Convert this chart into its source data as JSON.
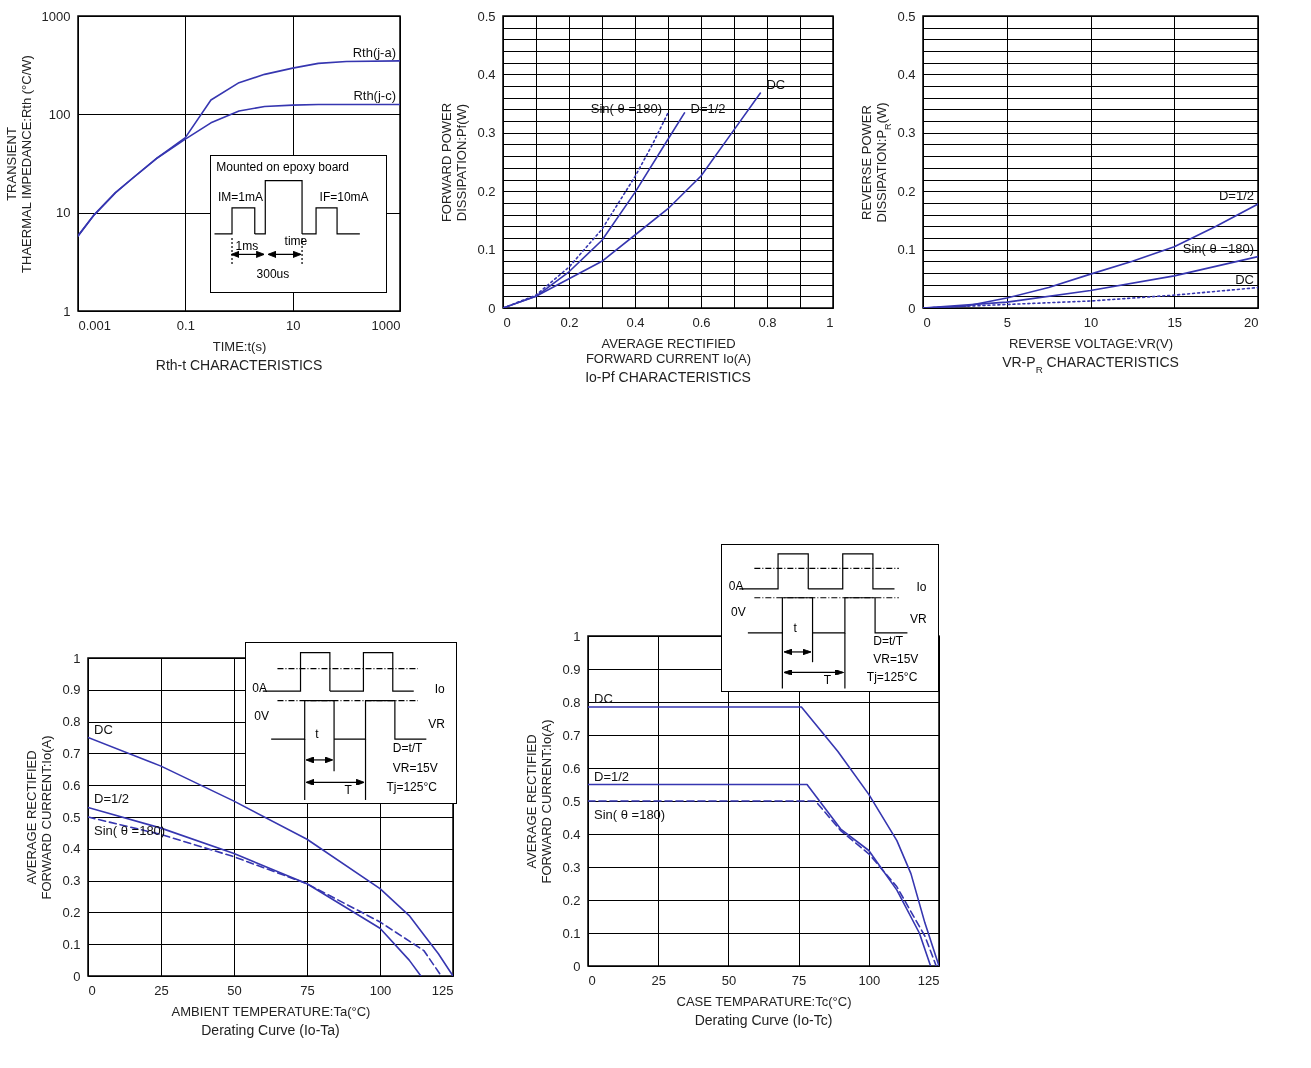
{
  "chart_data": [
    {
      "type": "line",
      "title": "Rth-t CHARACTERISTICS",
      "xlabel": "TIME:t(s)",
      "ylabel": "TRANSIENT\nTHAERMAL IMPEDANCE:Rth (°C/W)",
      "log": "xy",
      "grid": true,
      "x": [
        0.001,
        0.002,
        0.005,
        0.01,
        0.03,
        0.1,
        0.3,
        1,
        3,
        10,
        30,
        100,
        1000
      ],
      "xlim": [
        0.001,
        1000
      ],
      "xticks": [
        0.001,
        0.1,
        10,
        1000
      ],
      "ylim": [
        1,
        1000
      ],
      "yticks": [
        1,
        10,
        100,
        1000
      ],
      "series": [
        {
          "name": "Rth(j-a)",
          "color": "#3636b0",
          "values": [
            5.8,
            9.5,
            16,
            22,
            36,
            58,
            140,
            210,
            255,
            295,
            330,
            345,
            350
          ]
        },
        {
          "name": "Rth(j-c)",
          "color": "#3636b0",
          "values": [
            5.8,
            9.5,
            16,
            22,
            36,
            56,
            82,
            108,
            120,
            124,
            126,
            126,
            126
          ]
        }
      ],
      "annotations": [
        "Mounted on epoxy board",
        "IM=1mA",
        "IF=10mA",
        "1ms",
        "time",
        "300us"
      ]
    },
    {
      "type": "line",
      "title": "Io-Pf CHARACTERISTICS",
      "xlabel": "AVERAGE RECTIFIED\nFORWARD CURRENT Io(A)",
      "ylabel": "FORWARD POWER\nDISSIPATION:Pf(W)",
      "grid": true,
      "xlim": [
        0,
        1
      ],
      "xticks": [
        0,
        {
          "value": 0.1,
          "label": null
        },
        0.2,
        {
          "value": 0.3,
          "label": null
        },
        0.4,
        {
          "value": 0.5,
          "label": null
        },
        0.6,
        {
          "value": 0.7,
          "label": null
        },
        0.8,
        {
          "value": 0.9,
          "label": null
        },
        1
      ],
      "ylim": [
        0,
        0.5
      ],
      "yticks": [
        0,
        {
          "value": 0.02,
          "label": null
        },
        {
          "value": 0.04,
          "label": null
        },
        {
          "value": 0.06,
          "label": null
        },
        {
          "value": 0.08,
          "label": null
        },
        0.1,
        {
          "value": 0.12,
          "label": null
        },
        {
          "value": 0.14,
          "label": null
        },
        {
          "value": 0.16,
          "label": null
        },
        {
          "value": 0.18,
          "label": null
        },
        0.2,
        {
          "value": 0.22,
          "label": null
        },
        {
          "value": 0.24,
          "label": null
        },
        {
          "value": 0.26,
          "label": null
        },
        {
          "value": 0.28,
          "label": null
        },
        0.3,
        {
          "value": 0.32,
          "label": null
        },
        {
          "value": 0.34,
          "label": null
        },
        {
          "value": 0.36,
          "label": null
        },
        {
          "value": 0.38,
          "label": null
        },
        0.4,
        {
          "value": 0.42,
          "label": null
        },
        {
          "value": 0.44,
          "label": null
        },
        {
          "value": 0.46,
          "label": null
        },
        {
          "value": 0.48,
          "label": null
        },
        0.5
      ],
      "series": [
        {
          "name": "DC",
          "color": "#3636b0",
          "x": [
            0,
            0.1,
            0.2,
            0.3,
            0.4,
            0.5,
            0.6,
            0.7,
            0.78
          ],
          "values": [
            0,
            0.02,
            0.05,
            0.08,
            0.125,
            0.17,
            0.226,
            0.305,
            0.368
          ]
        },
        {
          "name": "D=1/2",
          "color": "#3636b0",
          "x": [
            0,
            0.1,
            0.2,
            0.3,
            0.4,
            0.5,
            0.55
          ],
          "values": [
            0,
            0.02,
            0.062,
            0.116,
            0.198,
            0.289,
            0.334
          ]
        },
        {
          "name": "Sin( θ =180)",
          "color": "#3636b0",
          "line_style": "dotted",
          "x": [
            0,
            0.1,
            0.2,
            0.3,
            0.4,
            0.45,
            0.5
          ],
          "values": [
            0,
            0.022,
            0.07,
            0.135,
            0.225,
            0.277,
            0.334
          ]
        }
      ]
    },
    {
      "type": "line",
      "title": "VR-P$_{R}$ CHARACTERISTICS",
      "xlabel": "REVERSE VOLTAGE:VR(V)",
      "ylabel": "REVERSE POWER\nDISSIPATION:P$_{R}$(W)",
      "grid": true,
      "xlim": [
        0,
        20
      ],
      "xticks": [
        0,
        5,
        10,
        15,
        20
      ],
      "ylim": [
        0,
        0.5
      ],
      "yticks": [
        0,
        {
          "value": 0.02,
          "label": null
        },
        {
          "value": 0.04,
          "label": null
        },
        {
          "value": 0.06,
          "label": null
        },
        {
          "value": 0.08,
          "label": null
        },
        0.1,
        {
          "value": 0.12,
          "label": null
        },
        {
          "value": 0.14,
          "label": null
        },
        {
          "value": 0.16,
          "label": null
        },
        {
          "value": 0.18,
          "label": null
        },
        0.2,
        {
          "value": 0.22,
          "label": null
        },
        {
          "value": 0.24,
          "label": null
        },
        {
          "value": 0.26,
          "label": null
        },
        {
          "value": 0.28,
          "label": null
        },
        0.3,
        {
          "value": 0.32,
          "label": null
        },
        {
          "value": 0.34,
          "label": null
        },
        {
          "value": 0.36,
          "label": null
        },
        {
          "value": 0.38,
          "label": null
        },
        0.4,
        {
          "value": 0.42,
          "label": null
        },
        {
          "value": 0.44,
          "label": null
        },
        {
          "value": 0.46,
          "label": null
        },
        {
          "value": 0.48,
          "label": null
        },
        0.5
      ],
      "series": [
        {
          "name": "D=1/2",
          "color": "#3636b0",
          "x": [
            0,
            2.5,
            5,
            7.5,
            10,
            12.5,
            15,
            17.5,
            20
          ],
          "values": [
            0,
            0.003,
            0.017,
            0.035,
            0.058,
            0.08,
            0.105,
            0.14,
            0.178
          ]
        },
        {
          "name": "Sin( θ =180)",
          "color": "#3636b0",
          "x": [
            0,
            5,
            10,
            15,
            20
          ],
          "values": [
            0,
            0.01,
            0.03,
            0.055,
            0.088
          ]
        },
        {
          "name": "DC",
          "color": "#3636b0",
          "line_style": "dotted",
          "x": [
            0,
            5,
            10,
            15,
            20
          ],
          "values": [
            0,
            0.006,
            0.012,
            0.022,
            0.035
          ]
        }
      ]
    },
    {
      "type": "line",
      "title": "Derating Curve (Io-Ta)",
      "xlabel": "AMBIENT TEMPERATURE:Ta(°C)",
      "ylabel": "AVERAGE RECTIFIED\nFORWARD CURRENT:Io(A)",
      "grid": true,
      "xlim": [
        0,
        125
      ],
      "xticks": [
        0,
        25,
        50,
        75,
        100,
        125
      ],
      "ylim": [
        0,
        1
      ],
      "yticks": [
        0,
        0.1,
        0.2,
        0.3,
        0.4,
        0.5,
        0.6,
        0.7,
        0.8,
        0.9,
        1
      ],
      "series": [
        {
          "name": "DC",
          "color": "#3636b0",
          "x": [
            0,
            25,
            50,
            75,
            100,
            110,
            115,
            120,
            125
          ],
          "values": [
            0.75,
            0.66,
            0.55,
            0.43,
            0.275,
            0.19,
            0.13,
            0.07,
            0
          ]
        },
        {
          "name": "D=1/2",
          "color": "#3636b0",
          "x": [
            0,
            25,
            50,
            75,
            100,
            110,
            114
          ],
          "values": [
            0.53,
            0.465,
            0.385,
            0.29,
            0.15,
            0.05,
            0
          ]
        },
        {
          "name": "Sin( θ =180)",
          "color": "#3636b0",
          "line_style": "dashed",
          "x": [
            0,
            25,
            50,
            75,
            100,
            115,
            121
          ],
          "values": [
            0.5,
            0.445,
            0.375,
            0.29,
            0.17,
            0.08,
            0
          ]
        }
      ],
      "annotations": [
        "0A",
        "Io",
        "0V",
        "VR",
        "t",
        "T",
        "D=t/T",
        "VR=15V",
        "Tj=125°C"
      ]
    },
    {
      "type": "line",
      "title": "Derating Curve (Io-Tc)",
      "xlabel": "CASE TEMPARATURE:Tc(°C)",
      "ylabel": "AVERAGE RECTIFIED\nFORWARD CURRENT:Io(A)",
      "grid": true,
      "xlim": [
        0,
        125
      ],
      "xticks": [
        0,
        25,
        50,
        75,
        100,
        125
      ],
      "ylim": [
        0,
        1
      ],
      "yticks": [
        0,
        0.1,
        0.2,
        0.3,
        0.4,
        0.5,
        0.6,
        0.7,
        0.8,
        0.9,
        1
      ],
      "series": [
        {
          "name": "DC",
          "color": "#3636b0",
          "x": [
            0,
            76,
            89,
            100,
            110,
            115,
            120,
            125
          ],
          "values": [
            0.785,
            0.785,
            0.65,
            0.52,
            0.38,
            0.28,
            0.13,
            0
          ]
        },
        {
          "name": "D=1/2",
          "color": "#3636b0",
          "x": [
            0,
            78,
            90,
            100,
            110,
            118,
            122
          ],
          "values": [
            0.55,
            0.55,
            0.415,
            0.35,
            0.23,
            0.1,
            0
          ]
        },
        {
          "name": "Sin( θ =180)",
          "color": "#3636b0",
          "line_style": "dashed",
          "x": [
            0,
            81,
            90,
            100,
            110,
            120,
            124
          ],
          "values": [
            0.5,
            0.5,
            0.41,
            0.34,
            0.24,
            0.09,
            0
          ]
        }
      ],
      "annotations": [
        "0A",
        "Io",
        "0V",
        "VR",
        "t",
        "T",
        "D=t/T",
        "VR=15V",
        "Tj=125°C"
      ]
    }
  ]
}
